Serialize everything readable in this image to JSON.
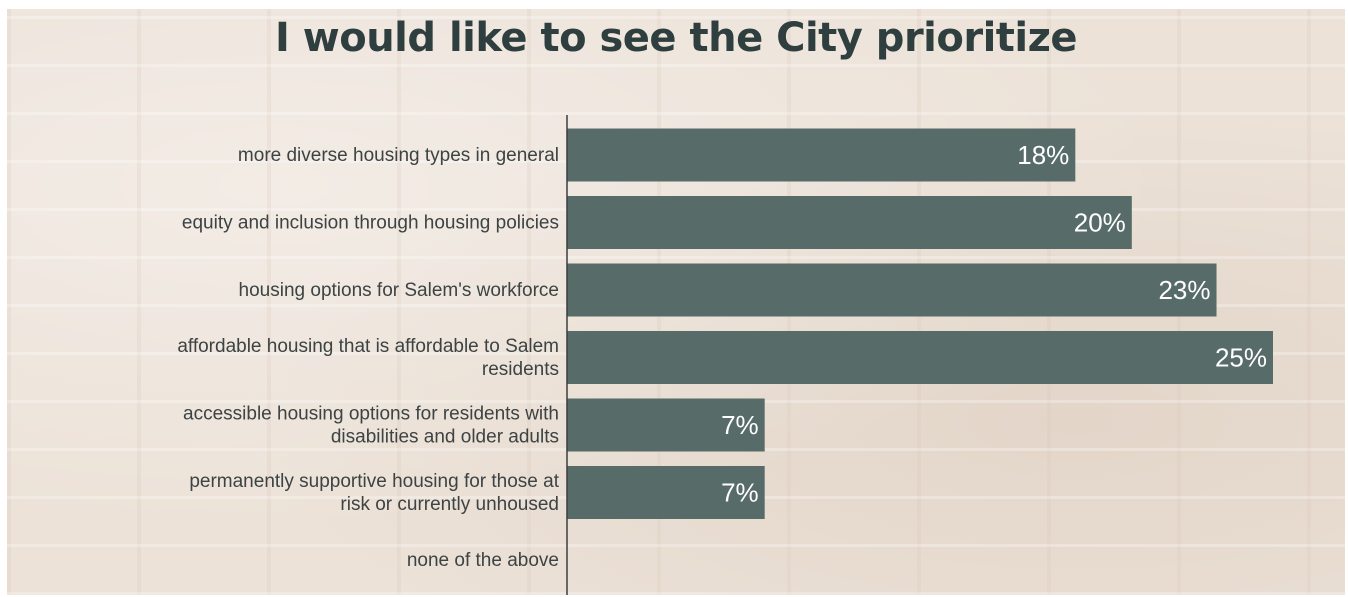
{
  "colors": {
    "bar": "#576b68",
    "axis": "#3a3f3f",
    "title": "#2f3e3e",
    "background": "#ece2d8"
  },
  "chart_data": {
    "type": "bar",
    "orientation": "horizontal",
    "title": "I would like to see the City prioritize",
    "xlabel": "",
    "ylabel": "",
    "grid": false,
    "xlim": [
      0,
      25
    ],
    "categories": [
      [
        "more diverse housing types in general"
      ],
      [
        "equity and inclusion through housing policies"
      ],
      [
        "housing options for Salem's workforce"
      ],
      [
        "affordable housing that is affordable to Salem",
        "residents"
      ],
      [
        "accessible housing options for residents with",
        "disabilities and older adults"
      ],
      [
        "permanently supportive housing for those at",
        "risk or currently unhoused"
      ],
      [
        "none of the above"
      ]
    ],
    "values": [
      18,
      20,
      23,
      25,
      7,
      7,
      null
    ],
    "data_labels": [
      "18%",
      "20%",
      "23%",
      "25%",
      "7%",
      "7%",
      ""
    ]
  }
}
